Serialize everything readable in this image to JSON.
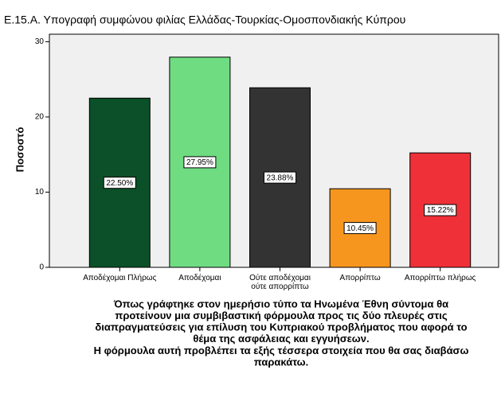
{
  "chart_data": {
    "type": "bar",
    "title": "Ε.15.Α. Υπογραφή συμφώνου φιλίας Ελλάδας-Τουρκίας-Ομοσπονδιακής Κύπρου",
    "ylabel": "Ποσοστό",
    "xlabel": [
      "Όπως γράφτηκε στον ημερήσιο τύπο τα Ηνωμένα Έθνη σύντομα θα",
      "προτείνουν μια συμβιβαστική φόρμουλα προς τις δύο πλευρές στις",
      "διαπραγματεύσεις για επίλυση του Κυπριακού προβλήματος που αφορά το",
      "θέμα της ασφάλειας και εγγυήσεων.",
      "Η φόρμουλα αυτή προβλέπει τα εξής τέσσερα στοιχεία που θα σας διαβάσω",
      "παρακάτω."
    ],
    "categories": [
      "Αποδέχομαι Πλήρως",
      "Αποδέχομαι",
      "Ούτε αποδέχομαι\nούτε απορρίπτω",
      "Απορρίπτω",
      "Απορρίπτω πλήρως"
    ],
    "values": [
      22.5,
      27.95,
      23.88,
      10.45,
      15.22
    ],
    "value_labels": [
      "22.50%",
      "27.95%",
      "23.88%",
      "10.45%",
      "15.22%"
    ],
    "colors": [
      "#0b5028",
      "#6fdc82",
      "#333333",
      "#f7961e",
      "#ef3038"
    ],
    "ylim": [
      0,
      31
    ],
    "yticks": [
      0,
      10,
      20,
      30
    ],
    "grid": false
  }
}
